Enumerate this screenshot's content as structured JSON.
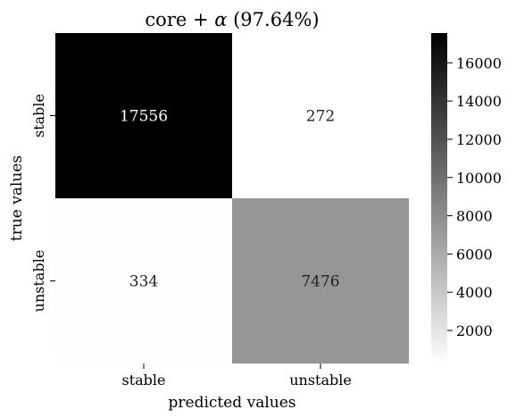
{
  "chart_data": {
    "type": "heatmap",
    "title": "core + α (97.64%)",
    "title_parts": {
      "prefix": "core + ",
      "symbol": "α",
      "suffix": " (97.64%)"
    },
    "xlabel": "predicted values",
    "ylabel": "true values",
    "x_categories": [
      "stable",
      "unstable"
    ],
    "y_categories": [
      "stable",
      "unstable"
    ],
    "values": [
      [
        17556,
        272
      ],
      [
        334,
        7476
      ]
    ],
    "colormap": {
      "name": "Greys",
      "min": 272,
      "max": 17556,
      "low_color": "#ffffff",
      "high_color": "#000000"
    },
    "colorbar": {
      "ticks": [
        2000,
        4000,
        6000,
        8000,
        10000,
        12000,
        14000,
        16000
      ]
    },
    "grid": false,
    "legend": "colorbar-right"
  }
}
